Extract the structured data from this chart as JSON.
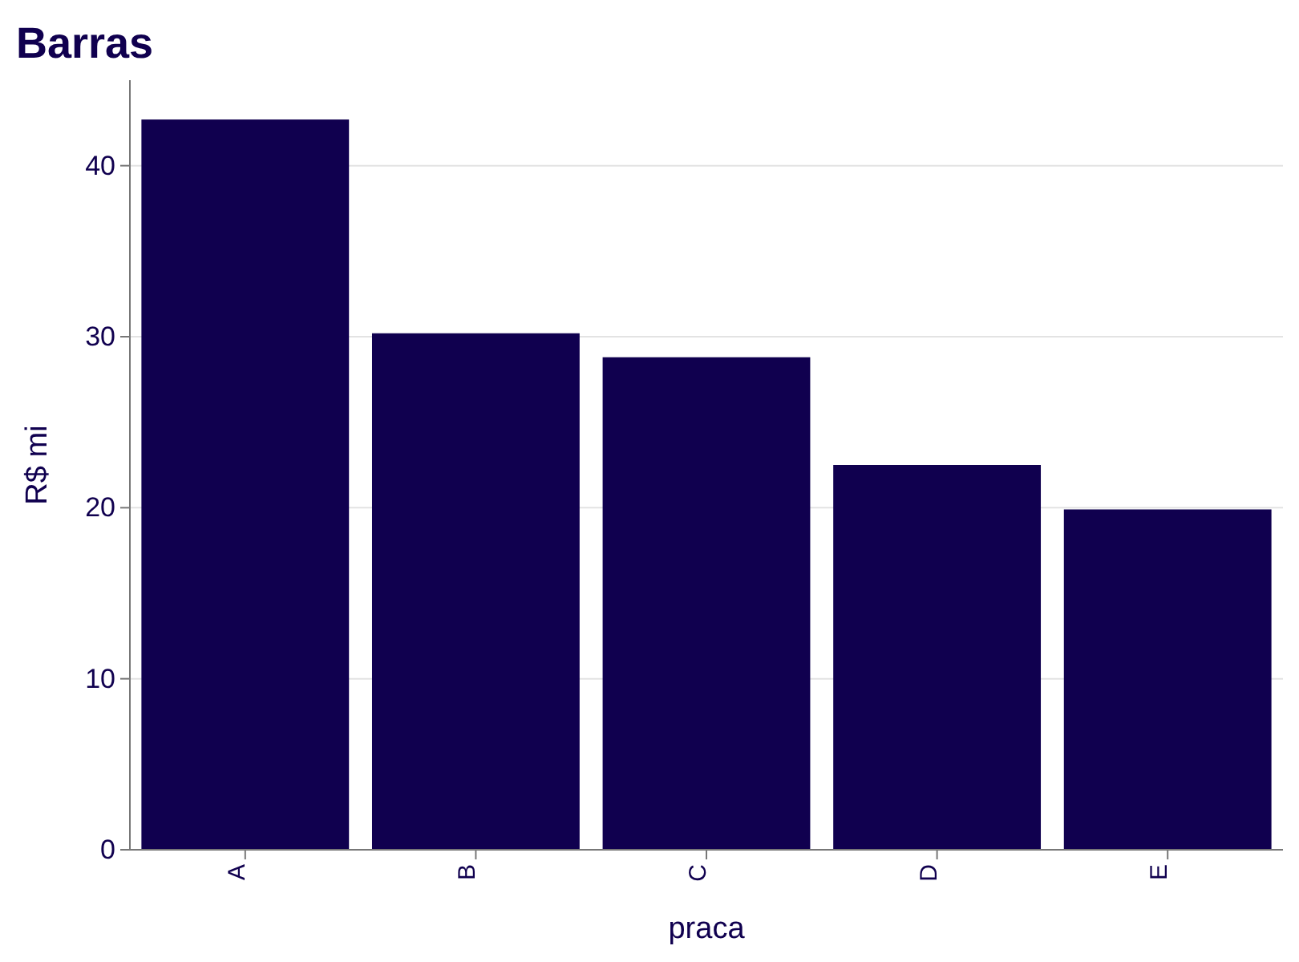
{
  "chart_data": {
    "type": "bar",
    "title": "Barras",
    "xlabel": "praca",
    "ylabel": "R$ mi",
    "categories": [
      "A",
      "B",
      "C",
      "D",
      "E"
    ],
    "values": [
      42.7,
      30.2,
      28.8,
      22.5,
      19.9
    ],
    "color": "#10004f",
    "ylim": [
      0,
      45
    ],
    "yticks": [
      0,
      10,
      20,
      30,
      40
    ],
    "grid": "y"
  }
}
